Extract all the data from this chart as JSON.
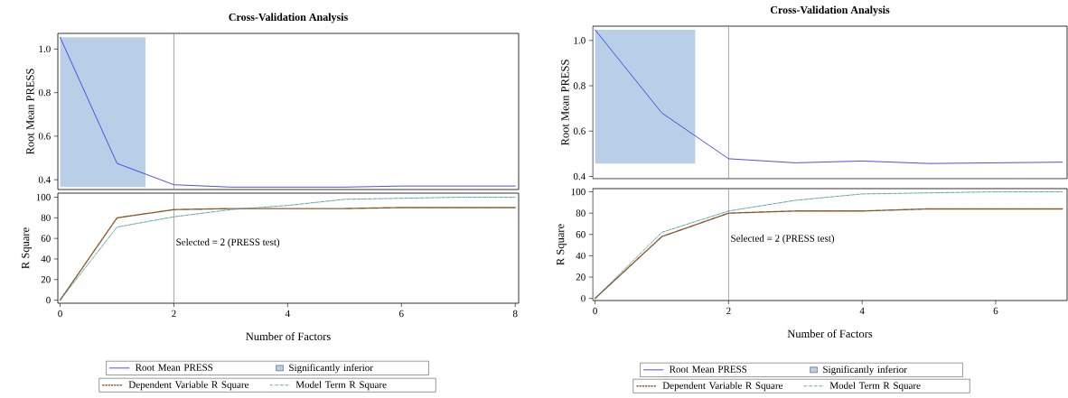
{
  "chart_data": [
    {
      "type": "line",
      "title": "Cross-Validation Analysis",
      "ylabel": "Root Mean PRESS",
      "x": [
        0,
        1,
        2,
        3,
        4,
        5,
        6,
        7,
        8
      ],
      "series": [
        {
          "name": "Root Mean PRESS",
          "color": "#3c3ce6",
          "line_style": "solid",
          "values": [
            1.054,
            0.475,
            0.377,
            0.366,
            0.366,
            0.366,
            0.371,
            0.371,
            0.371
          ]
        }
      ],
      "xlim": [
        -0.04,
        8.06
      ],
      "ylim": [
        0.355,
        1.072
      ],
      "yticks": [
        0.4,
        0.6,
        0.8,
        {
          "value": 1,
          "label": "1.0"
        }
      ],
      "tick_labels": "y",
      "legend": "bottom",
      "bands": [
        {
          "axis": "x",
          "from": 0,
          "to": 1.5,
          "label": "Significantly inferior",
          "color": "#b9cfe8"
        }
      ],
      "ref_lines": [
        {
          "axis": "x",
          "value": 2,
          "color": "#808080"
        }
      ]
    },
    {
      "type": "line",
      "xlabel": "Number of Factors",
      "ylabel": "R Square",
      "x": [
        0,
        1,
        2,
        3,
        4,
        5,
        6,
        7,
        8
      ],
      "series": [
        {
          "name": "Dependent Variable R Square",
          "color": "#8b5a2b",
          "line_style": "dashed",
          "values": [
            0,
            80,
            88,
            89,
            89,
            89,
            90,
            90,
            90
          ]
        },
        {
          "name": "Model Term R Square",
          "color": "#2a8f8f",
          "line_style": "dashdot",
          "values": [
            0,
            71,
            81,
            88,
            92,
            98,
            99,
            100,
            100
          ]
        }
      ],
      "xlim": [
        -0.04,
        8.06
      ],
      "ylim": [
        -3,
        104
      ],
      "xticks": [
        0,
        2,
        4,
        6,
        8
      ],
      "yticks": [
        0,
        20,
        40,
        60,
        80,
        100
      ],
      "legend": "bottom",
      "ref_lines": [
        {
          "axis": "x",
          "value": 2,
          "label": "Selected = 2 (PRESS test)",
          "color": "#808080"
        }
      ]
    },
    {
      "type": "line",
      "title": "Cross-Validation Analysis",
      "ylabel": "Root Mean PRESS",
      "x": [
        0,
        1,
        2,
        3,
        4,
        5,
        6,
        7
      ],
      "series": [
        {
          "name": "Root Mean PRESS",
          "color": "#3c3ce6",
          "line_style": "solid",
          "values": [
            1.047,
            0.68,
            0.478,
            0.46,
            0.468,
            0.457,
            0.46,
            0.463
          ]
        }
      ],
      "xlim": [
        -0.035,
        7.07
      ],
      "ylim": [
        0.39,
        1.063
      ],
      "yticks": [
        0.4,
        0.6,
        0.8,
        {
          "value": 1,
          "label": "1.0"
        }
      ],
      "tick_labels": "y",
      "legend": "bottom",
      "bands": [
        {
          "axis": "x",
          "from": 0,
          "to": 1.5,
          "label": "Significantly inferior",
          "color": "#b9cfe8"
        }
      ],
      "ref_lines": [
        {
          "axis": "x",
          "value": 2,
          "color": "#808080"
        }
      ]
    },
    {
      "type": "line",
      "xlabel": "Number of Factors",
      "ylabel": "R Square",
      "x": [
        0,
        1,
        2,
        3,
        4,
        5,
        6,
        7
      ],
      "series": [
        {
          "name": "Dependent Variable R Square",
          "color": "#8b5a2b",
          "line_style": "dashed",
          "values": [
            0,
            58,
            80,
            82,
            82,
            84,
            84,
            84
          ]
        },
        {
          "name": "Model Term R Square",
          "color": "#2a8f8f",
          "line_style": "dashdot",
          "values": [
            0,
            62,
            82,
            92,
            98,
            99,
            100,
            100
          ]
        }
      ],
      "xlim": [
        -0.035,
        7.07
      ],
      "ylim": [
        -2,
        103
      ],
      "xticks": [
        0,
        2,
        4,
        6
      ],
      "yticks": [
        0,
        20,
        40,
        60,
        80,
        100
      ],
      "legend": "bottom",
      "ref_lines": [
        {
          "axis": "x",
          "value": 2,
          "label": "Selected = 2 (PRESS test)",
          "color": "#808080"
        }
      ]
    }
  ]
}
